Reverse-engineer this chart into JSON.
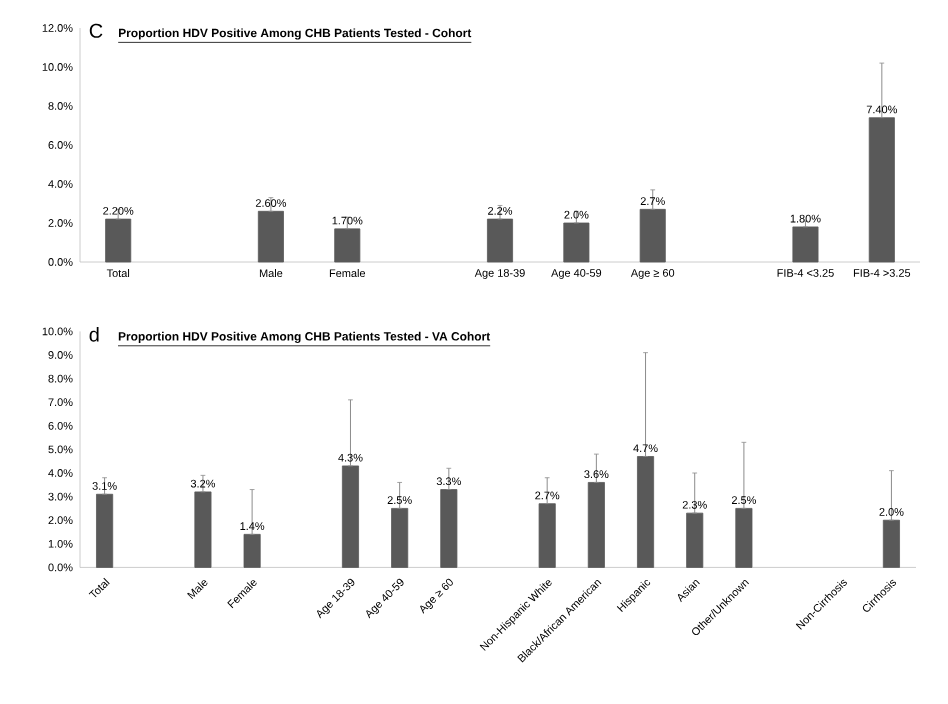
{
  "chart_data": [
    {
      "type": "bar",
      "title": "Proportion HDV Positive Among CHB Patients Tested - Cohort",
      "annotations": [
        "C"
      ],
      "categories": [
        "Total",
        null,
        "Male",
        "Female",
        null,
        "Age 18-39",
        "Age 40-59",
        "Age ≥ 60",
        null,
        "FIB-4 <3.25",
        "FIB-4 >3.25"
      ],
      "values": [
        2.2,
        null,
        2.6,
        1.7,
        null,
        2.2,
        2.0,
        2.7,
        null,
        1.8,
        7.4
      ],
      "errors": [
        [
          2.2,
          2.7
        ],
        null,
        [
          2.6,
          3.3
        ],
        [
          1.7,
          2.3
        ],
        null,
        [
          2.2,
          2.9
        ],
        [
          2.0,
          2.6
        ],
        [
          2.7,
          3.7
        ],
        null,
        [
          1.8,
          2.1
        ],
        [
          7.4,
          10.2
        ]
      ],
      "value_labels": [
        "2.20%",
        null,
        "2.60%",
        "1.70%",
        null,
        "2.2%",
        "2.0%",
        "2.7%",
        null,
        "1.80%",
        "7.40%"
      ],
      "color": "#595959",
      "ylim": [
        0,
        12
      ],
      "yticks": [
        {
          "value": 0,
          "label": "0.0%"
        },
        {
          "value": 2,
          "label": "2.0%"
        },
        {
          "value": 4,
          "label": "4.0%"
        },
        {
          "value": 6,
          "label": "6.0%"
        },
        {
          "value": 8,
          "label": "8.0%"
        },
        {
          "value": 10,
          "label": "10.0%"
        },
        {
          "value": 12,
          "label": "12.0%"
        }
      ]
    },
    {
      "type": "bar",
      "title": "Proportion HDV Positive Among CHB Patients Tested - VA Cohort",
      "annotations": [
        "d"
      ],
      "categories": [
        "Total",
        null,
        "Male",
        "Female",
        null,
        "Age 18-39",
        "Age 40-59",
        "Age ≥ 60",
        null,
        "Non-Hispanic White",
        "Black/African American",
        "Hispanic",
        "Asian",
        "Other/Unknown",
        null,
        "Non-Cirrhosis",
        "Cirrhosis"
      ],
      "values": [
        3.1,
        null,
        3.2,
        1.4,
        null,
        4.3,
        2.5,
        3.3,
        null,
        2.7,
        3.6,
        4.7,
        2.3,
        2.5,
        null,
        null,
        2.0
      ],
      "errors": [
        [
          3.1,
          3.8
        ],
        null,
        [
          3.2,
          3.9
        ],
        [
          1.4,
          3.3
        ],
        null,
        [
          4.3,
          7.1
        ],
        [
          2.5,
          3.6
        ],
        [
          3.3,
          4.2
        ],
        null,
        [
          2.7,
          3.8
        ],
        [
          3.6,
          4.8
        ],
        [
          4.7,
          9.1
        ],
        [
          2.3,
          4.0
        ],
        [
          2.5,
          5.3
        ],
        null,
        null,
        [
          2.0,
          4.1
        ]
      ],
      "value_labels": [
        "3.1%",
        null,
        "3.2%",
        "1.4%",
        null,
        "4.3%",
        "2.5%",
        "3.3%",
        null,
        "2.7%",
        "3.6%",
        "4.7%",
        "2.3%",
        "2.5%",
        null,
        null,
        "2.0%"
      ],
      "color": "#595959",
      "ylim": [
        0,
        10
      ],
      "yticks": [
        {
          "value": 0,
          "label": "0.0%"
        },
        {
          "value": 1,
          "label": "1.0%"
        },
        {
          "value": 2,
          "label": "2.0%"
        },
        {
          "value": 3,
          "label": "3.0%"
        },
        {
          "value": 4,
          "label": "4.0%"
        },
        {
          "value": 5,
          "label": "5.0%"
        },
        {
          "value": 6,
          "label": "6.0%"
        },
        {
          "value": 7,
          "label": "7.0%"
        },
        {
          "value": 8,
          "label": "8.0%"
        },
        {
          "value": 9,
          "label": "9.0%"
        },
        {
          "value": 10,
          "label": "10.0%"
        }
      ]
    }
  ]
}
